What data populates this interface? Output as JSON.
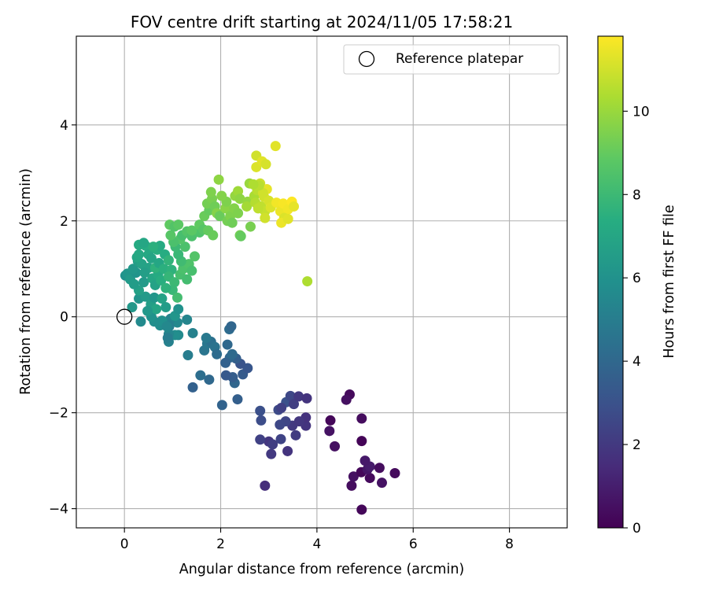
{
  "chart_data": {
    "type": "scatter",
    "title": "FOV centre drift starting at 2024/11/05 17:58:21",
    "xlabel": "Angular distance from reference (arcmin)",
    "ylabel": "Rotation from reference (arcmin)",
    "xlim": [
      -1.0,
      9.2
    ],
    "ylim": [
      -4.4,
      5.85
    ],
    "xticks": [
      0,
      2,
      4,
      6,
      8
    ],
    "xtick_labels": [
      "0",
      "2",
      "4",
      "6",
      "8"
    ],
    "yticks": [
      -4,
      -2,
      0,
      2,
      4
    ],
    "ytick_labels": [
      "−4",
      "−2",
      "0",
      "2",
      "4"
    ],
    "grid": true,
    "legend": {
      "placement": "top-right",
      "entries": [
        "Reference platepar"
      ]
    },
    "reference_point": {
      "x": 0,
      "y": 0
    },
    "colorbar": {
      "label": "Hours from first FF file",
      "colormap": "viridis",
      "range": [
        0,
        11.8
      ],
      "ticks": [
        0,
        2,
        4,
        6,
        8,
        10
      ],
      "tick_labels": [
        "0",
        "2",
        "4",
        "6",
        "8",
        "10"
      ]
    },
    "points": [
      [
        4.93,
        -4.02,
        0.2
      ],
      [
        2.92,
        -3.52,
        1.6
      ],
      [
        4.72,
        -3.52,
        0.4
      ],
      [
        5.1,
        -3.36,
        0.3
      ],
      [
        5.35,
        -3.46,
        0.6
      ],
      [
        4.76,
        -3.33,
        0.5
      ],
      [
        4.92,
        -3.24,
        0.2
      ],
      [
        5.05,
        -3.18,
        0.7
      ],
      [
        5.1,
        -3.12,
        0.9
      ],
      [
        5.3,
        -3.15,
        0.4
      ],
      [
        5.62,
        -3.26,
        0.3
      ],
      [
        5.0,
        -3.0,
        0.8
      ],
      [
        4.93,
        -2.59,
        0.1
      ],
      [
        4.37,
        -2.7,
        0.5
      ],
      [
        4.26,
        -2.38,
        0.6
      ],
      [
        4.28,
        -2.16,
        0.2
      ],
      [
        4.93,
        -2.12,
        0.4
      ],
      [
        4.68,
        -1.62,
        0.3
      ],
      [
        4.61,
        -1.73,
        0.5
      ],
      [
        3.39,
        -2.8,
        1.8
      ],
      [
        3.05,
        -2.86,
        2.0
      ],
      [
        3.0,
        -2.6,
        1.9
      ],
      [
        3.08,
        -2.66,
        2.2
      ],
      [
        3.25,
        -2.55,
        2.4
      ],
      [
        2.82,
        -2.56,
        2.3
      ],
      [
        3.56,
        -2.47,
        2.1
      ],
      [
        3.49,
        -2.27,
        2.0
      ],
      [
        3.77,
        -2.27,
        1.8
      ],
      [
        3.77,
        -2.1,
        1.7
      ],
      [
        3.63,
        -2.18,
        1.9
      ],
      [
        3.35,
        -2.18,
        2.5
      ],
      [
        3.23,
        -2.25,
        2.6
      ],
      [
        2.84,
        -2.16,
        2.8
      ],
      [
        2.82,
        -1.96,
        2.9
      ],
      [
        3.2,
        -1.94,
        2.7
      ],
      [
        3.36,
        -1.78,
        3.0
      ],
      [
        3.45,
        -1.65,
        2.6
      ],
      [
        3.52,
        -1.82,
        2.2
      ],
      [
        3.62,
        -1.66,
        2.0
      ],
      [
        3.79,
        -1.7,
        1.8
      ],
      [
        3.26,
        -1.9,
        2.3
      ],
      [
        2.03,
        -1.84,
        3.8
      ],
      [
        2.35,
        -1.72,
        3.6
      ],
      [
        2.29,
        -1.38,
        3.9
      ],
      [
        2.25,
        -1.26,
        3.5
      ],
      [
        2.11,
        -1.22,
        3.3
      ],
      [
        2.46,
        -1.2,
        3.4
      ],
      [
        2.56,
        -1.07,
        3.2
      ],
      [
        2.41,
        -0.98,
        3.1
      ],
      [
        2.32,
        -0.87,
        3.6
      ],
      [
        2.19,
        -0.85,
        3.9
      ],
      [
        2.24,
        -0.78,
        4.1
      ],
      [
        2.1,
        -0.96,
        3.7
      ],
      [
        2.14,
        -0.58,
        4.0
      ],
      [
        2.18,
        -0.26,
        4.2
      ],
      [
        2.22,
        -0.2,
        3.9
      ],
      [
        1.76,
        -1.31,
        4.0
      ],
      [
        1.58,
        -1.22,
        4.3
      ],
      [
        1.42,
        -1.47,
        3.7
      ],
      [
        1.66,
        -0.7,
        4.6
      ],
      [
        1.72,
        -0.56,
        4.7
      ],
      [
        1.8,
        -0.52,
        4.4
      ],
      [
        1.7,
        -0.44,
        4.8
      ],
      [
        1.88,
        -0.63,
        4.5
      ],
      [
        1.92,
        -0.78,
        4.2
      ],
      [
        1.32,
        -0.8,
        5.0
      ],
      [
        1.42,
        -0.34,
        5.2
      ],
      [
        1.3,
        -0.06,
        5.4
      ],
      [
        1.12,
        -0.38,
        5.6
      ],
      [
        1.05,
        -0.38,
        5.8
      ],
      [
        1.1,
        -0.12,
        5.5
      ],
      [
        0.96,
        -0.04,
        5.3
      ],
      [
        0.93,
        -0.2,
        5.1
      ],
      [
        0.92,
        -0.36,
        5.4
      ],
      [
        0.92,
        -0.52,
        5.2
      ],
      [
        0.9,
        -0.44,
        5.0
      ],
      [
        0.74,
        -0.18,
        5.7
      ],
      [
        0.78,
        -0.08,
        5.9
      ],
      [
        0.62,
        -0.1,
        5.8
      ],
      [
        0.56,
        0.0,
        6.0
      ],
      [
        0.34,
        -0.1,
        5.6
      ],
      [
        0.88,
        -0.2,
        5.5
      ],
      [
        1.05,
        0.02,
        6.2
      ],
      [
        1.12,
        0.16,
        6.0
      ],
      [
        0.16,
        0.2,
        6.3
      ],
      [
        0.3,
        0.38,
        6.1
      ],
      [
        0.44,
        0.42,
        6.4
      ],
      [
        0.55,
        0.26,
        6.6
      ],
      [
        0.62,
        0.4,
        6.2
      ],
      [
        0.78,
        0.38,
        6.8
      ],
      [
        0.86,
        0.2,
        6.5
      ],
      [
        0.66,
        0.16,
        6.9
      ],
      [
        0.48,
        0.12,
        6.3
      ],
      [
        0.3,
        0.55,
        6.7
      ],
      [
        0.02,
        0.86,
        6.0
      ],
      [
        0.06,
        0.9,
        6.2
      ],
      [
        0.12,
        0.78,
        6.4
      ],
      [
        0.2,
        0.68,
        6.5
      ],
      [
        0.24,
        0.92,
        6.1
      ],
      [
        0.18,
        1.0,
        6.3
      ],
      [
        0.28,
        1.16,
        6.6
      ],
      [
        0.36,
        1.1,
        6.8
      ],
      [
        0.26,
        1.24,
        7.0
      ],
      [
        0.3,
        1.5,
        7.2
      ],
      [
        0.44,
        1.48,
        7.3
      ],
      [
        0.5,
        1.3,
        7.1
      ],
      [
        0.56,
        1.22,
        6.9
      ],
      [
        0.5,
        1.02,
        6.8
      ],
      [
        0.42,
        0.92,
        6.6
      ],
      [
        0.4,
        0.72,
        6.4
      ],
      [
        0.58,
        0.8,
        7.0
      ],
      [
        0.64,
        0.66,
        6.8
      ],
      [
        0.7,
        0.88,
        7.2
      ],
      [
        0.76,
        0.76,
        7.4
      ],
      [
        0.64,
        1.02,
        7.6
      ],
      [
        0.72,
        1.12,
        7.0
      ],
      [
        0.82,
        1.0,
        7.5
      ],
      [
        0.84,
        1.3,
        7.3
      ],
      [
        0.92,
        1.18,
        7.7
      ],
      [
        0.98,
        0.98,
        7.6
      ],
      [
        0.92,
        0.84,
        7.8
      ],
      [
        1.04,
        0.72,
        8.0
      ],
      [
        1.0,
        0.56,
        7.9
      ],
      [
        0.86,
        0.6,
        7.6
      ],
      [
        0.68,
        1.4,
        7.4
      ],
      [
        0.74,
        1.48,
        7.2
      ],
      [
        0.6,
        1.46,
        7.5
      ],
      [
        0.4,
        1.54,
        7.0
      ],
      [
        0.3,
        1.3,
        7.1
      ],
      [
        1.1,
        0.4,
        8.2
      ],
      [
        1.16,
        0.88,
        8.3
      ],
      [
        1.22,
        1.0,
        8.4
      ],
      [
        1.3,
        0.78,
        8.2
      ],
      [
        1.34,
        1.1,
        8.5
      ],
      [
        1.4,
        0.96,
        8.3
      ],
      [
        1.46,
        1.26,
        8.6
      ],
      [
        1.18,
        1.16,
        8.1
      ],
      [
        1.12,
        1.3,
        7.9
      ],
      [
        1.06,
        1.46,
        8.0
      ],
      [
        1.26,
        1.46,
        8.4
      ],
      [
        1.16,
        1.62,
        8.6
      ],
      [
        1.02,
        1.56,
        8.4
      ],
      [
        0.96,
        1.7,
        8.7
      ],
      [
        0.94,
        1.92,
        8.9
      ],
      [
        1.04,
        1.88,
        8.6
      ],
      [
        1.12,
        1.92,
        8.8
      ],
      [
        1.2,
        1.7,
        8.3
      ],
      [
        1.3,
        1.78,
        8.6
      ],
      [
        1.4,
        1.68,
        8.4
      ],
      [
        1.56,
        1.76,
        8.5
      ],
      [
        1.4,
        1.8,
        8.8
      ],
      [
        1.56,
        1.92,
        8.9
      ],
      [
        1.64,
        1.82,
        8.7
      ],
      [
        1.74,
        1.8,
        9.0
      ],
      [
        1.66,
        2.1,
        9.1
      ],
      [
        1.76,
        2.22,
        9.0
      ],
      [
        1.72,
        2.36,
        9.3
      ],
      [
        1.82,
        2.46,
        9.4
      ],
      [
        1.8,
        2.6,
        9.5
      ],
      [
        1.88,
        2.3,
        9.2
      ],
      [
        1.92,
        2.16,
        9.6
      ],
      [
        1.98,
        2.1,
        9.1
      ],
      [
        2.1,
        2.26,
        9.7
      ],
      [
        2.12,
        2.4,
        9.5
      ],
      [
        2.02,
        2.52,
        9.6
      ],
      [
        1.96,
        2.86,
        9.8
      ],
      [
        2.14,
        2.0,
        9.3
      ],
      [
        2.2,
        2.1,
        9.5
      ],
      [
        2.24,
        1.96,
        9.2
      ],
      [
        2.28,
        2.26,
        9.6
      ],
      [
        2.3,
        2.52,
        9.9
      ],
      [
        2.36,
        2.62,
        10.1
      ],
      [
        2.4,
        2.46,
        9.8
      ],
      [
        2.36,
        2.16,
        9.5
      ],
      [
        1.84,
        1.7,
        9.1
      ],
      [
        2.4,
        1.7,
        9.3
      ],
      [
        2.42,
        1.68,
        9.0
      ],
      [
        2.62,
        1.88,
        9.4
      ],
      [
        2.56,
        2.4,
        9.9
      ],
      [
        2.54,
        2.3,
        10.2
      ],
      [
        2.6,
        2.78,
        10.0
      ],
      [
        2.7,
        2.52,
        10.3
      ],
      [
        2.76,
        2.64,
        10.6
      ],
      [
        2.82,
        2.78,
        10.9
      ],
      [
        2.72,
        2.38,
        10.5
      ],
      [
        2.84,
        2.3,
        10.7
      ],
      [
        2.9,
        2.5,
        11.0
      ],
      [
        2.92,
        2.2,
        10.8
      ],
      [
        3.0,
        2.42,
        11.1
      ],
      [
        3.04,
        2.28,
        11.2
      ],
      [
        2.96,
        2.66,
        11.4
      ],
      [
        2.88,
        2.58,
        11.0
      ],
      [
        2.78,
        2.26,
        10.7
      ],
      [
        2.74,
        3.36,
        11.0
      ],
      [
        2.74,
        3.12,
        11.2
      ],
      [
        2.86,
        3.24,
        11.3
      ],
      [
        2.94,
        3.18,
        11.1
      ],
      [
        3.14,
        3.56,
        11.3
      ],
      [
        3.16,
        2.38,
        11.6
      ],
      [
        3.24,
        2.2,
        11.5
      ],
      [
        3.3,
        2.36,
        11.7
      ],
      [
        3.4,
        2.24,
        11.6
      ],
      [
        3.48,
        2.4,
        11.8
      ],
      [
        3.52,
        2.3,
        11.4
      ],
      [
        3.32,
        2.06,
        11.2
      ],
      [
        3.26,
        1.96,
        11.5
      ],
      [
        3.4,
        2.04,
        11.3
      ],
      [
        2.92,
        2.06,
        11.0
      ],
      [
        2.8,
        2.74,
        10.6
      ],
      [
        2.68,
        2.76,
        10.4
      ],
      [
        3.8,
        0.74,
        10.4
      ]
    ]
  }
}
